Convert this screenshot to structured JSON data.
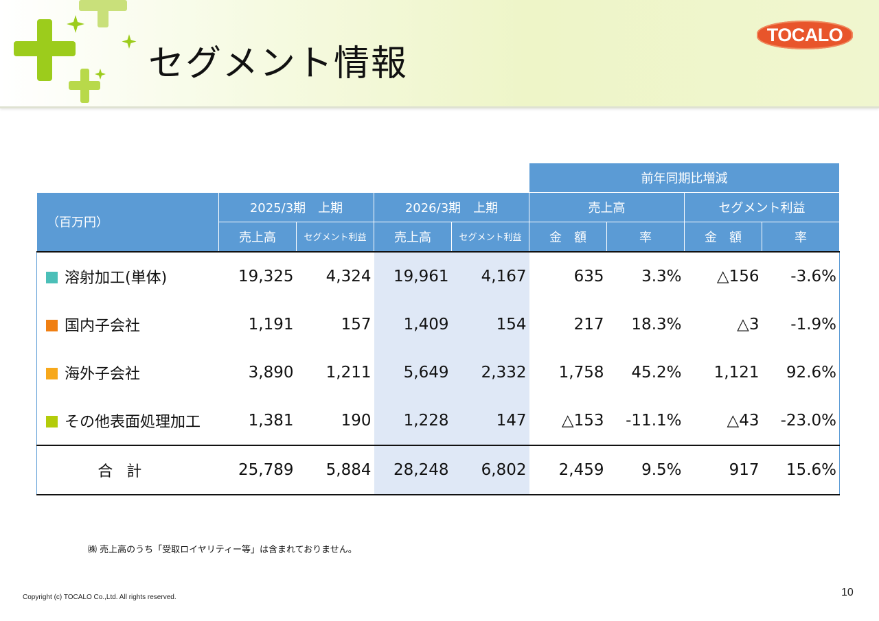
{
  "header": {
    "title": "セグメント情報",
    "logo_text": "TOCALO"
  },
  "table": {
    "unit_label": "（百万円）",
    "group_yoy": "前年同期比増減",
    "period_prev": "2025/3期　上期",
    "period_curr": "2026/3期　上期",
    "yoy_sales": "売上高",
    "yoy_profit": "セグメント利益",
    "sub_sales": "売上高",
    "sub_profit": "セグメント利益",
    "sub_amount": "金　額",
    "sub_rate": "率",
    "rows": [
      {
        "name": "溶射加工(単体)",
        "color": "#4bbfb8",
        "cells": [
          "19,325",
          "4,324",
          "19,961",
          "4,167",
          "635",
          "3.3%",
          "△156",
          "-3.6%"
        ]
      },
      {
        "name": "国内子会社",
        "color": "#f07f12",
        "cells": [
          "1,191",
          "157",
          "1,409",
          "154",
          "217",
          "18.3%",
          "△3",
          "-1.9%"
        ]
      },
      {
        "name": "海外子会社",
        "color": "#f7a81b",
        "cells": [
          "3,890",
          "1,211",
          "5,649",
          "2,332",
          "1,758",
          "45.2%",
          "1,121",
          "92.6%"
        ]
      },
      {
        "name": "その他表面処理加工",
        "color": "#b3cc0a",
        "cells": [
          "1,381",
          "190",
          "1,228",
          "147",
          "△153",
          "-11.1%",
          "△43",
          "-23.0%"
        ]
      }
    ],
    "total": {
      "name": "合計",
      "cells": [
        "25,789",
        "5,884",
        "28,248",
        "6,802",
        "2,459",
        "9.5%",
        "917",
        "15.6%"
      ]
    }
  },
  "footer": {
    "note": "㈱ 売上高のうち「受取ロイヤリティー等」は含まれておりません。",
    "copyright": "Copyright (c) TOCALO Co.,Ltd. All rights reserved.",
    "page_number": "10"
  },
  "colors": {
    "header_blue": "#5b9bd5",
    "highlight": "#dfe8f6",
    "logo": "#e8552b"
  }
}
